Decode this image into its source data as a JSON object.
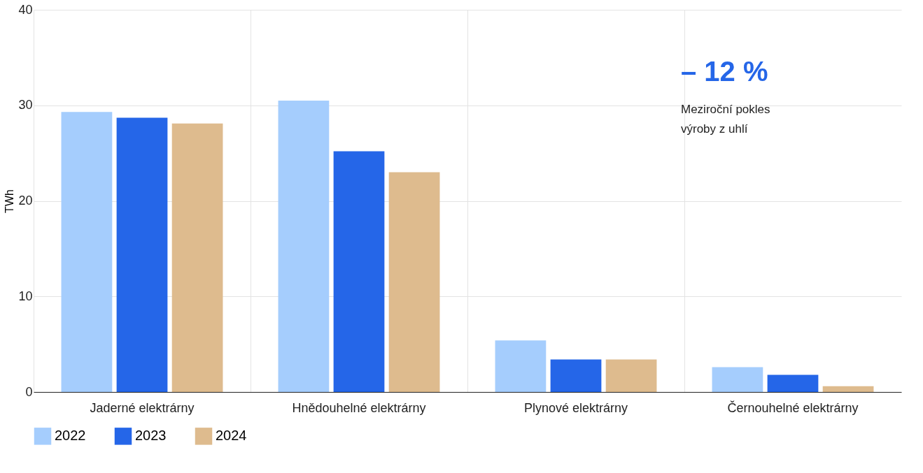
{
  "chart_data": {
    "type": "bar",
    "ylabel": "TWh",
    "categories": [
      "Jaderné elektrárny",
      "Hnědouhelné elektrárny",
      "Plynové elektrárny",
      "Černouhelné elektrárny"
    ],
    "series": [
      {
        "name": "2022",
        "color": "#a5cdfd",
        "values": [
          29.3,
          30.5,
          5.4,
          2.6
        ]
      },
      {
        "name": "2023",
        "color": "#2566e8",
        "values": [
          28.7,
          25.2,
          3.4,
          1.8
        ]
      },
      {
        "name": "2024",
        "color": "#debb8e",
        "values": [
          28.1,
          23.0,
          3.4,
          0.6
        ]
      }
    ],
    "ylim": [
      0,
      40
    ],
    "yticks": [
      0,
      10,
      20,
      30,
      40
    ],
    "grid": true,
    "legend": "bottom",
    "annotations": [
      "– 12 %",
      "Meziroční pokles\nvýroby z uhlí"
    ]
  }
}
